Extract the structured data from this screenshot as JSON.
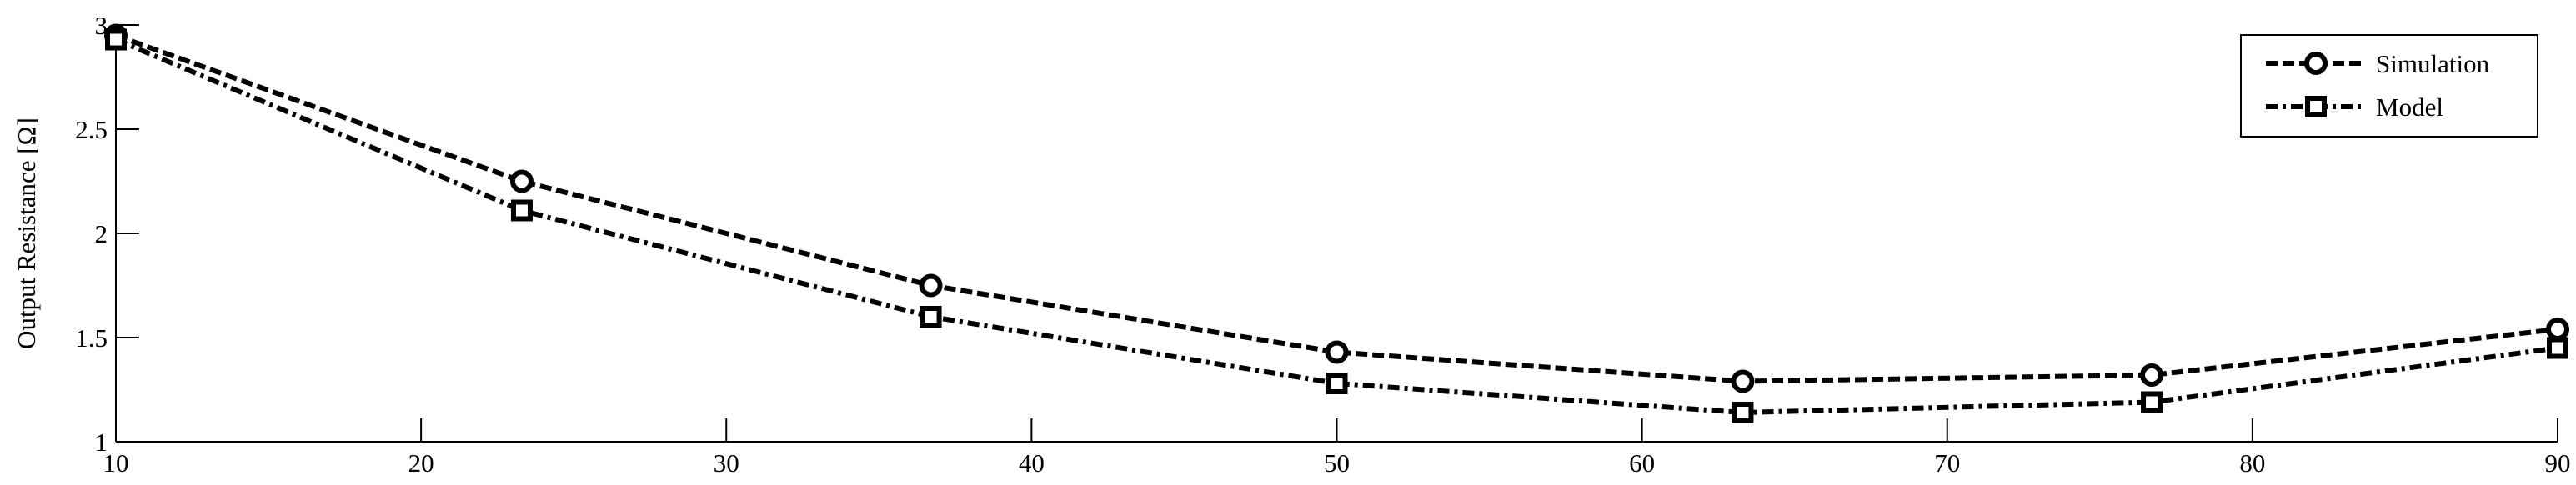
{
  "chart_data": {
    "type": "line",
    "title": "",
    "xlabel": "",
    "ylabel": "Output Resistance [Ω]",
    "xlim": [
      10,
      90
    ],
    "ylim": [
      1,
      3
    ],
    "xticks": [
      10,
      20,
      30,
      40,
      50,
      60,
      70,
      80,
      90
    ],
    "yticks": [
      1,
      1.5,
      2,
      2.5,
      3
    ],
    "xtick_labels": [
      "10",
      "20",
      "30",
      "40",
      "50",
      "60",
      "70",
      "80",
      "90"
    ],
    "ytick_labels": [
      "1",
      "1.5",
      "2",
      "2.5",
      "3"
    ],
    "grid": false,
    "legend_position": "top-right",
    "x": [
      10,
      23.3,
      36.7,
      50,
      63.3,
      76.7,
      90
    ],
    "series": [
      {
        "name": "Simulation",
        "marker": "circle",
        "line_style": "dashed",
        "color": "#000000",
        "values": [
          2.95,
          2.25,
          1.75,
          1.43,
          1.29,
          1.32,
          1.54
        ]
      },
      {
        "name": "Model",
        "marker": "square",
        "line_style": "dash-dot",
        "color": "#000000",
        "values": [
          2.93,
          2.11,
          1.6,
          1.28,
          1.14,
          1.19,
          1.45
        ]
      }
    ]
  }
}
